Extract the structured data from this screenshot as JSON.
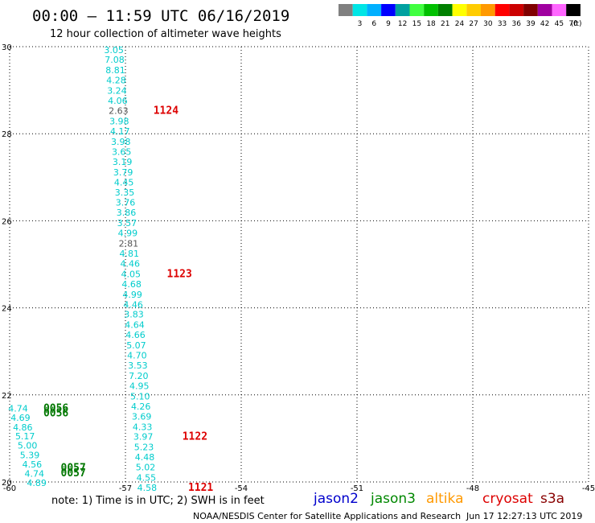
{
  "header": {
    "title": "00:00 — 11:59 UTC 06/16/2019",
    "subtitle": "12 hour collection of altimeter wave heights"
  },
  "legend": {
    "unit": "(ft)",
    "bins": [
      {
        "label": "",
        "color": "#808080"
      },
      {
        "label": "3",
        "color": "#00e5e5"
      },
      {
        "label": "6",
        "color": "#00b0ff"
      },
      {
        "label": "9",
        "color": "#0000ff"
      },
      {
        "label": "12",
        "color": "#00a0a0"
      },
      {
        "label": "15",
        "color": "#40ff40"
      },
      {
        "label": "18",
        "color": "#00c000"
      },
      {
        "label": "21",
        "color": "#008000"
      },
      {
        "label": "24",
        "color": "#ffff00"
      },
      {
        "label": "27",
        "color": "#ffcc00"
      },
      {
        "label": "30",
        "color": "#ff9900"
      },
      {
        "label": "33",
        "color": "#ff0000"
      },
      {
        "label": "36",
        "color": "#cc0000"
      },
      {
        "label": "39",
        "color": "#800000"
      },
      {
        "label": "42",
        "color": "#a000a0"
      },
      {
        "label": "45",
        "color": "#ff66ff"
      },
      {
        "label": "70",
        "color": "#000000"
      }
    ]
  },
  "footer": {
    "note": "note: 1) Time is in UTC; 2) SWH is in feet",
    "missions": [
      {
        "name": "jason2",
        "color": "#0000cc"
      },
      {
        "name": "jason3",
        "color": "#008800"
      },
      {
        "name": "altika",
        "color": "#ff9900"
      },
      {
        "name": "cryosat",
        "color": "#dd0000"
      },
      {
        "name": "s3a",
        "color": "#880000"
      }
    ],
    "credit": "NOAA/NESDIS Center for Satellite Applications and Research",
    "timestamp": "Jun 17 12:27:13 UTC 2019"
  },
  "colors": {
    "cyan": "#00cccc",
    "gray": "#555555",
    "red": "#dd0000",
    "green": "#007700"
  },
  "chart_data": {
    "type": "scatter",
    "xlim": [
      -60,
      -45
    ],
    "ylim": [
      20,
      30
    ],
    "x_ticks": [
      "-60",
      "-57",
      "-54",
      "-51",
      "-48",
      "-45"
    ],
    "y_ticks": [
      "30",
      "28",
      "26",
      "24",
      "22",
      "20"
    ],
    "grid": true,
    "track_points": [
      {
        "lon": -57.3,
        "lat": 29.93,
        "v": "3.05",
        "c": "cyan"
      },
      {
        "lon": -57.28,
        "lat": 29.7,
        "v": "7.08",
        "c": "cyan"
      },
      {
        "lon": -57.26,
        "lat": 29.46,
        "v": "8.81",
        "c": "cyan"
      },
      {
        "lon": -57.24,
        "lat": 29.23,
        "v": "4.28",
        "c": "cyan"
      },
      {
        "lon": -57.22,
        "lat": 28.99,
        "v": "3.24",
        "c": "cyan"
      },
      {
        "lon": -57.2,
        "lat": 28.76,
        "v": "4.06",
        "c": "cyan"
      },
      {
        "lon": -57.18,
        "lat": 28.53,
        "v": "2.63",
        "c": "gray"
      },
      {
        "lon": -57.16,
        "lat": 28.29,
        "v": "3.98",
        "c": "cyan"
      },
      {
        "lon": -57.14,
        "lat": 28.06,
        "v": "4.17",
        "c": "cyan"
      },
      {
        "lon": -57.12,
        "lat": 27.82,
        "v": "3.98",
        "c": "cyan"
      },
      {
        "lon": -57.1,
        "lat": 27.59,
        "v": "3.65",
        "c": "cyan"
      },
      {
        "lon": -57.08,
        "lat": 27.36,
        "v": "3.19",
        "c": "cyan"
      },
      {
        "lon": -57.06,
        "lat": 27.12,
        "v": "3.79",
        "c": "cyan"
      },
      {
        "lon": -57.04,
        "lat": 26.89,
        "v": "4.45",
        "c": "cyan"
      },
      {
        "lon": -57.02,
        "lat": 26.65,
        "v": "3.35",
        "c": "cyan"
      },
      {
        "lon": -57.0,
        "lat": 26.42,
        "v": "3.76",
        "c": "cyan"
      },
      {
        "lon": -56.98,
        "lat": 26.19,
        "v": "3.86",
        "c": "cyan"
      },
      {
        "lon": -56.96,
        "lat": 25.95,
        "v": "3.57",
        "c": "cyan"
      },
      {
        "lon": -56.94,
        "lat": 25.72,
        "v": "4.99",
        "c": "cyan"
      },
      {
        "lon": -56.92,
        "lat": 25.48,
        "v": "2.81",
        "c": "gray"
      },
      {
        "lon": -56.9,
        "lat": 25.25,
        "v": "4.81",
        "c": "cyan"
      },
      {
        "lon": -56.88,
        "lat": 25.02,
        "v": "4.46",
        "c": "cyan"
      },
      {
        "lon": -56.86,
        "lat": 24.78,
        "v": "4.05",
        "c": "cyan"
      },
      {
        "lon": -56.84,
        "lat": 24.55,
        "v": "4.68",
        "c": "cyan"
      },
      {
        "lon": -56.82,
        "lat": 24.31,
        "v": "4.99",
        "c": "cyan"
      },
      {
        "lon": -56.8,
        "lat": 24.08,
        "v": "4.46",
        "c": "cyan"
      },
      {
        "lon": -56.78,
        "lat": 23.85,
        "v": "3.83",
        "c": "cyan"
      },
      {
        "lon": -56.76,
        "lat": 23.61,
        "v": "4.64",
        "c": "cyan"
      },
      {
        "lon": -56.74,
        "lat": 23.38,
        "v": "4.66",
        "c": "cyan"
      },
      {
        "lon": -56.72,
        "lat": 23.14,
        "v": "5.07",
        "c": "cyan"
      },
      {
        "lon": -56.7,
        "lat": 22.91,
        "v": "4.70",
        "c": "cyan"
      },
      {
        "lon": -56.68,
        "lat": 22.68,
        "v": "3.53",
        "c": "cyan"
      },
      {
        "lon": -56.66,
        "lat": 22.44,
        "v": "7.20",
        "c": "cyan"
      },
      {
        "lon": -56.64,
        "lat": 22.21,
        "v": "4.95",
        "c": "cyan"
      },
      {
        "lon": -56.62,
        "lat": 21.97,
        "v": "5.10",
        "c": "cyan"
      },
      {
        "lon": -56.6,
        "lat": 21.74,
        "v": "4.26",
        "c": "cyan"
      },
      {
        "lon": -56.58,
        "lat": 21.51,
        "v": "3.69",
        "c": "cyan"
      },
      {
        "lon": -56.56,
        "lat": 21.27,
        "v": "4.33",
        "c": "cyan"
      },
      {
        "lon": -56.54,
        "lat": 21.04,
        "v": "3.97",
        "c": "cyan"
      },
      {
        "lon": -56.52,
        "lat": 20.8,
        "v": "5.23",
        "c": "cyan"
      },
      {
        "lon": -56.5,
        "lat": 20.57,
        "v": "4.48",
        "c": "cyan"
      },
      {
        "lon": -56.48,
        "lat": 20.34,
        "v": "5.02",
        "c": "cyan"
      },
      {
        "lon": -56.46,
        "lat": 20.1,
        "v": "4.55",
        "c": "cyan"
      },
      {
        "lon": -56.44,
        "lat": 19.87,
        "v": "4.58",
        "c": "cyan"
      },
      {
        "lon": -59.78,
        "lat": 21.69,
        "v": "4.74",
        "c": "cyan"
      },
      {
        "lon": -59.72,
        "lat": 21.48,
        "v": "4.69",
        "c": "cyan"
      },
      {
        "lon": -59.66,
        "lat": 21.26,
        "v": "4.86",
        "c": "cyan"
      },
      {
        "lon": -59.6,
        "lat": 21.05,
        "v": "5.17",
        "c": "cyan"
      },
      {
        "lon": -59.54,
        "lat": 20.84,
        "v": "5.00",
        "c": "cyan"
      },
      {
        "lon": -59.48,
        "lat": 20.62,
        "v": "5.39",
        "c": "cyan"
      },
      {
        "lon": -59.42,
        "lat": 20.41,
        "v": "4.56",
        "c": "cyan"
      },
      {
        "lon": -59.36,
        "lat": 20.19,
        "v": "4.74",
        "c": "cyan"
      },
      {
        "lon": -59.3,
        "lat": 19.98,
        "v": "4.89",
        "c": "cyan"
      }
    ],
    "pass_labels": [
      {
        "lon": -55.95,
        "lat": 28.53,
        "t": "1124",
        "c": "red"
      },
      {
        "lon": -55.6,
        "lat": 24.78,
        "v": "",
        "t": "1123",
        "c": "red"
      },
      {
        "lon": -55.2,
        "lat": 21.04,
        "t": "1122",
        "c": "red"
      },
      {
        "lon": -55.05,
        "lat": 19.87,
        "t": "1121",
        "c": "red"
      },
      {
        "lon": -58.8,
        "lat": 21.69,
        "t": "0056",
        "c": "green"
      },
      {
        "lon": -58.8,
        "lat": 21.58,
        "t": "0056",
        "c": "green"
      },
      {
        "lon": -58.35,
        "lat": 20.32,
        "t": "0057",
        "c": "green"
      },
      {
        "lon": -58.35,
        "lat": 20.2,
        "t": "0057",
        "c": "green"
      }
    ]
  }
}
